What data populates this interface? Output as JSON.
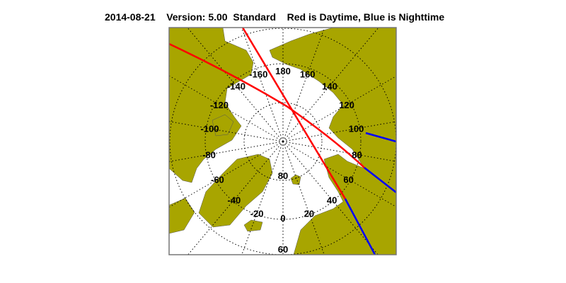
{
  "title": {
    "date": "2014-08-21",
    "version": "Version: 5.00",
    "mode": "Standard",
    "legend_text": "Red is Daytime, Blue is Nighttime"
  },
  "map": {
    "projection": "north polar stereographic",
    "land_color": "#a8a500",
    "ocean_color": "#ffffff",
    "day_color": "#ff0000",
    "night_color": "#0000ff",
    "grid": "dotted",
    "longitude_labels": [
      "180",
      "160",
      "140",
      "120",
      "100",
      "80",
      "60",
      "40",
      "20",
      "0",
      "-20",
      "-40",
      "-60",
      "-80",
      "-100",
      "-120",
      "-140",
      "-160"
    ],
    "latitude_labels": [
      "80",
      "60"
    ]
  }
}
